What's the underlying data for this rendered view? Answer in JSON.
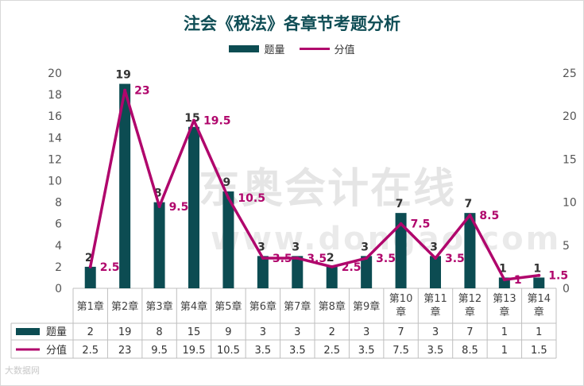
{
  "chart_data": {
    "type": "bar+line",
    "title": "注会《税法》各章节考题分析",
    "categories": [
      "第1章",
      "第2章",
      "第3章",
      "第4章",
      "第5章",
      "第6章",
      "第7章",
      "第8章",
      "第9章",
      "第10章",
      "第11章",
      "第12章",
      "第13章",
      "第14章"
    ],
    "series": [
      {
        "name": "题量",
        "kind": "bar",
        "axis": "left",
        "values": [
          2,
          19,
          8,
          15,
          9,
          3,
          3,
          2,
          3,
          7,
          3,
          7,
          1,
          1
        ]
      },
      {
        "name": "分值",
        "kind": "line",
        "axis": "right",
        "values": [
          2.5,
          23,
          9.5,
          19.5,
          10.5,
          3.5,
          3.5,
          2.5,
          3.5,
          7.5,
          3.5,
          8.5,
          1,
          1.5
        ]
      }
    ],
    "y_left": {
      "range": [
        0,
        20
      ],
      "ticks": [
        0,
        2,
        4,
        6,
        8,
        10,
        12,
        14,
        16,
        18,
        20
      ]
    },
    "y_right": {
      "range": [
        0,
        25
      ],
      "ticks": [
        0,
        5,
        10,
        15,
        20,
        25
      ]
    },
    "legend_position": "top-center",
    "data_table": true
  },
  "colors": {
    "bar": "#0c4c52",
    "line": "#b0066c",
    "title": "#0f4d55"
  },
  "watermark": {
    "brand": "东奥会计在线",
    "site": "www.dongao.com"
  },
  "badge": "大数据网"
}
